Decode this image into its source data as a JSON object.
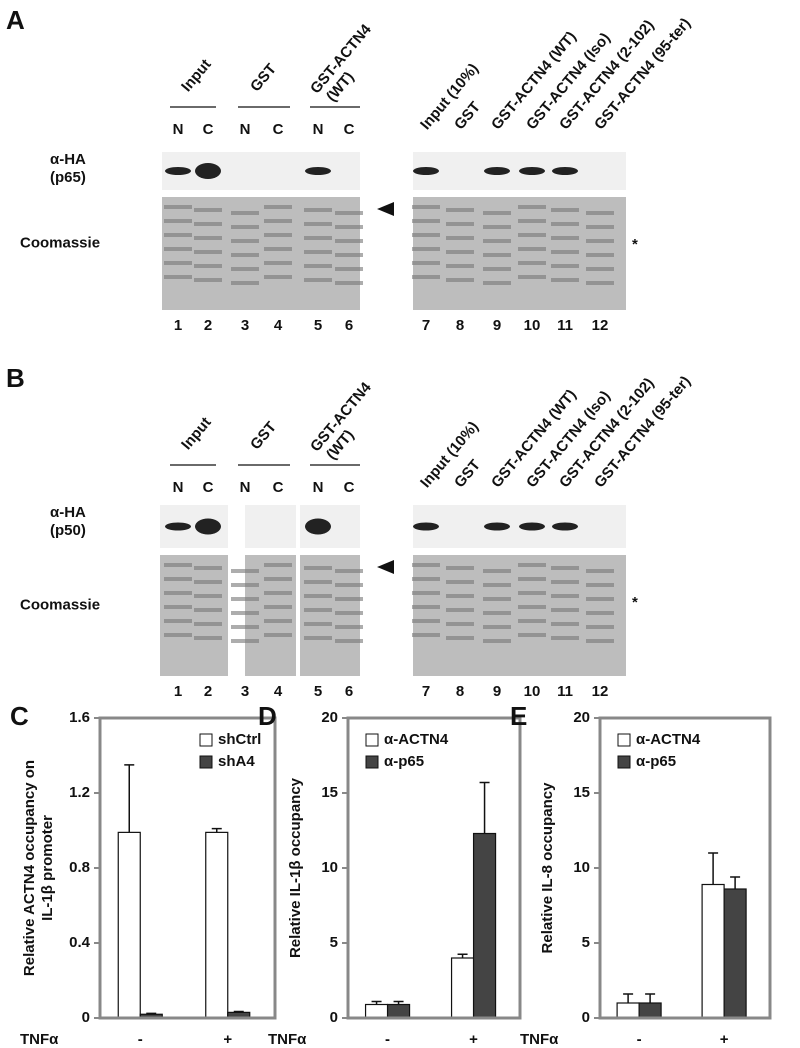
{
  "panels": [
    {
      "letter": "A",
      "left_headers": [
        "Input",
        "GST",
        "GST-ACTN4",
        "(WT)"
      ],
      "nc": [
        "N",
        "C",
        "N",
        "C",
        "N",
        "C"
      ],
      "right_headers": [
        "Input (10%)",
        "GST",
        "GST-ACTN4 (WT)",
        "GST-ACTN4 (Iso)",
        "GST-ACTN4 (2-102)",
        "GST-ACTN4 (95-ter)"
      ],
      "row_labels": [
        "α-HA",
        "(p65)",
        "Coomassie"
      ],
      "star": "*",
      "lanes": [
        "1",
        "2",
        "3",
        "4",
        "5",
        "6",
        "7",
        "8",
        "9",
        "10",
        "11",
        "12"
      ]
    },
    {
      "letter": "B",
      "left_headers": [
        "Input",
        "GST",
        "GST-ACTN4",
        "(WT)"
      ],
      "nc": [
        "N",
        "C",
        "N",
        "C",
        "N",
        "C"
      ],
      "right_headers": [
        "Input (10%)",
        "GST",
        "GST-ACTN4 (WT)",
        "GST-ACTN4 (Iso)",
        "GST-ACTN4 (2-102)",
        "GST-ACTN4 (95-ter)"
      ],
      "row_labels": [
        "α-HA",
        "(p50)",
        "Coomassie"
      ],
      "star": "*",
      "lanes": [
        "1",
        "2",
        "3",
        "4",
        "5",
        "6",
        "7",
        "8",
        "9",
        "10",
        "11",
        "12"
      ]
    }
  ],
  "chart_data": [
    {
      "type": "bar",
      "label": "C",
      "ylabel": [
        "Relative ACTN4 occupancy on",
        "IL-1β promoter"
      ],
      "xlabel": "TNFα",
      "categories": [
        "-",
        "+"
      ],
      "ylim": [
        0,
        1.6
      ],
      "yticks": [
        0,
        0.4,
        0.8,
        1.2,
        1.6
      ],
      "series": [
        {
          "name": "shCtrl",
          "color": "#ffffff",
          "values": [
            0.99,
            0.99
          ],
          "errors": [
            0.36,
            0.02
          ]
        },
        {
          "name": "shA4",
          "color": "#444444",
          "values": [
            0.02,
            0.03
          ],
          "errors": [
            0.005,
            0.005
          ]
        }
      ]
    },
    {
      "type": "bar",
      "label": "D",
      "ylabel": [
        "Relative IL-1β occupancy"
      ],
      "xlabel": "TNFα",
      "categories": [
        "-",
        "+"
      ],
      "ylim": [
        0,
        20
      ],
      "yticks": [
        0,
        5,
        10,
        15,
        20
      ],
      "series": [
        {
          "name": "α-ACTN4",
          "color": "#ffffff",
          "values": [
            0.9,
            4.0
          ],
          "errors": [
            0.2,
            0.25
          ]
        },
        {
          "name": "α-p65",
          "color": "#444444",
          "values": [
            0.9,
            12.3
          ],
          "errors": [
            0.2,
            3.4
          ]
        }
      ]
    },
    {
      "type": "bar",
      "label": "E",
      "ylabel": [
        "Relative IL-8 occupancy"
      ],
      "xlabel": "TNFα",
      "categories": [
        "-",
        "+"
      ],
      "ylim": [
        0,
        20
      ],
      "yticks": [
        0,
        5,
        10,
        15,
        20
      ],
      "series": [
        {
          "name": "α-ACTN4",
          "color": "#ffffff",
          "values": [
            1.0,
            8.9
          ],
          "errors": [
            0.6,
            2.1
          ]
        },
        {
          "name": "α-p65",
          "color": "#444444",
          "values": [
            1.0,
            8.6
          ],
          "errors": [
            0.6,
            0.8
          ]
        }
      ]
    }
  ]
}
